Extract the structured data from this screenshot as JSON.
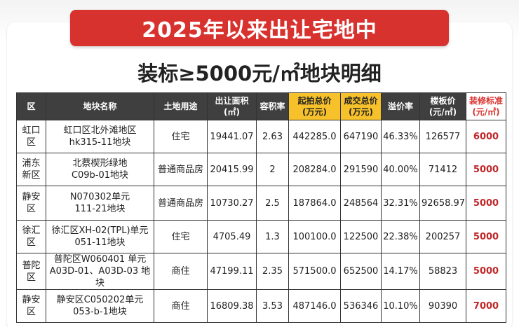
{
  "banner": {
    "title": "2025年以来出让宅地中"
  },
  "subtitle": "装标≥5000元/㎡地块明细",
  "table": {
    "headers": [
      {
        "l1": "区",
        "l2": ""
      },
      {
        "l1": "地块名称",
        "l2": ""
      },
      {
        "l1": "土地用途",
        "l2": ""
      },
      {
        "l1": "出让面积",
        "l2": "(㎡)"
      },
      {
        "l1": "容积率",
        "l2": ""
      },
      {
        "l1": "起拍总价",
        "l2": "(万元)"
      },
      {
        "l1": "成交总价",
        "l2": "(万元)"
      },
      {
        "l1": "溢价率",
        "l2": ""
      },
      {
        "l1": "楼板价",
        "l2": "(元/㎡)"
      },
      {
        "l1": "装修标准",
        "l2": "(元/㎡)"
      }
    ],
    "rows": [
      {
        "district": [
          "虹口区",
          ""
        ],
        "name": [
          "虹口区北外滩地区",
          "hk315-11地块"
        ],
        "use": "住宅",
        "area": "19441.07",
        "far": "2.63",
        "start_price": "442285.0",
        "deal_price": "647190",
        "premium": "46.33%",
        "floor_price": "126577",
        "standard": "6000"
      },
      {
        "district": [
          "浦东",
          "新区"
        ],
        "name": [
          "北蔡楔形绿地",
          "C09b-01地块"
        ],
        "use": "普通商品房",
        "area": "20415.99",
        "far": "2",
        "start_price": "208284.0",
        "deal_price": "291590",
        "premium": "40.00%",
        "floor_price": "71412",
        "standard": "5000"
      },
      {
        "district": [
          "静安区",
          ""
        ],
        "name": [
          "N070302单元",
          "111-21地块"
        ],
        "use": "普通商品房",
        "area": "10730.27",
        "far": "2.5",
        "start_price": "187864.0",
        "deal_price": "248564",
        "premium": "32.31%",
        "floor_price": "92658.97",
        "standard": "5000"
      },
      {
        "district": [
          "徐汇区",
          ""
        ],
        "name": [
          "徐汇区XH-02(TPL)单元",
          "051-11地块"
        ],
        "use": "住宅",
        "area": "4705.49",
        "far": "1.3",
        "start_price": "100100.0",
        "deal_price": "122500",
        "premium": "22.38%",
        "floor_price": "200257",
        "standard": "5000"
      },
      {
        "district": [
          "普陀区",
          ""
        ],
        "name": [
          "普陀区W060401 单元",
          "A03D-01、A03D-03 地块"
        ],
        "use": "商住",
        "area": "47199.11",
        "far": "2.35",
        "start_price": "571500.0",
        "deal_price": "652500",
        "premium": "14.17%",
        "floor_price": "58823",
        "standard": "5000"
      },
      {
        "district": [
          "静安区",
          ""
        ],
        "name": [
          "静安区C050202单元",
          "053-b-1地块"
        ],
        "use": "商住",
        "area": "16809.38",
        "far": "3.53",
        "start_price": "487146.0",
        "deal_price": "536346",
        "premium": "10.10%",
        "floor_price": "90390",
        "standard": "7000"
      }
    ]
  }
}
